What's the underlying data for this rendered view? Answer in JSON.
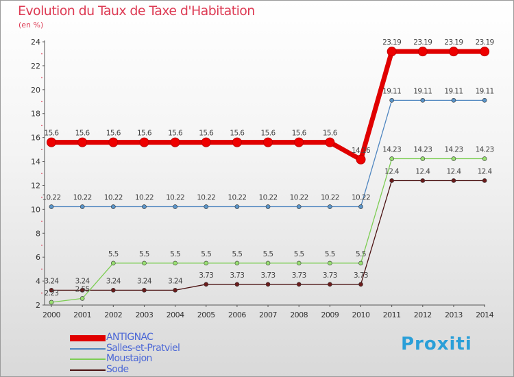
{
  "header": {
    "title": "Evolution du Taux de Taxe d'Habitation",
    "subtitle": "(en %)"
  },
  "brand": {
    "text": "Proxiti"
  },
  "chart_data": {
    "type": "line",
    "title": "Evolution du Taux de Taxe d'Habitation",
    "ylabel": "(en %)",
    "xlabel": "",
    "x": [
      "2000",
      "2001",
      "2002",
      "2003",
      "2004",
      "2005",
      "2006",
      "2007",
      "2008",
      "2009",
      "2010",
      "2011",
      "2012",
      "2013",
      "2014"
    ],
    "ylim": [
      2,
      24
    ],
    "yticks": [
      "2",
      "4",
      "6",
      "8",
      "10",
      "12",
      "14",
      "16",
      "18",
      "20",
      "22",
      "24"
    ],
    "grid": false,
    "legend_position": "bottom-left",
    "series": [
      {
        "name": "ANTIGNAC",
        "color": "#ee0000",
        "values": [
          15.6,
          15.6,
          15.6,
          15.6,
          15.6,
          15.6,
          15.6,
          15.6,
          15.6,
          15.6,
          14.16,
          23.19,
          23.19,
          23.19,
          23.19
        ],
        "labels": [
          "15.6",
          "15.6",
          "15.6",
          "15.6",
          "15.6",
          "15.6",
          "15.6",
          "15.6",
          "15.6",
          "15.6",
          "14.16",
          "23.19",
          "23.19",
          "23.19",
          "23.19"
        ]
      },
      {
        "name": "Salles-et-Pratviel",
        "color": "#5b95c9",
        "values": [
          10.22,
          10.22,
          10.22,
          10.22,
          10.22,
          10.22,
          10.22,
          10.22,
          10.22,
          10.22,
          10.22,
          19.11,
          19.11,
          19.11,
          19.11
        ],
        "labels": [
          "10.22",
          "10.22",
          "10.22",
          "10.22",
          "10.22",
          "10.22",
          "10.22",
          "10.22",
          "10.22",
          "10.22",
          "10.22",
          "19.11",
          "19.11",
          "19.11",
          "19.11"
        ]
      },
      {
        "name": "Moustajon",
        "color": "#99e072",
        "values": [
          2.23,
          2.55,
          5.5,
          5.5,
          5.5,
          5.5,
          5.5,
          5.5,
          5.5,
          5.5,
          5.5,
          14.23,
          14.23,
          14.23,
          14.23
        ],
        "labels": [
          "2.23",
          "2.55",
          "5.5",
          "5.5",
          "5.5",
          "5.5",
          "5.5",
          "5.5",
          "5.5",
          "5.5",
          "5.5",
          "14.23",
          "14.23",
          "14.23",
          "14.23"
        ]
      },
      {
        "name": "Sode",
        "color": "#6b1c1c",
        "values": [
          3.24,
          3.24,
          3.24,
          3.24,
          3.24,
          3.73,
          3.73,
          3.73,
          3.73,
          3.73,
          3.73,
          12.4,
          12.4,
          12.4,
          12.4
        ],
        "labels": [
          "3.24",
          "3.24",
          "3.24",
          "3.24",
          "3.24",
          "3.73",
          "3.73",
          "3.73",
          "3.73",
          "3.73",
          "3.73",
          "12.4",
          "12.4",
          "12.4",
          "12.4"
        ]
      }
    ]
  }
}
